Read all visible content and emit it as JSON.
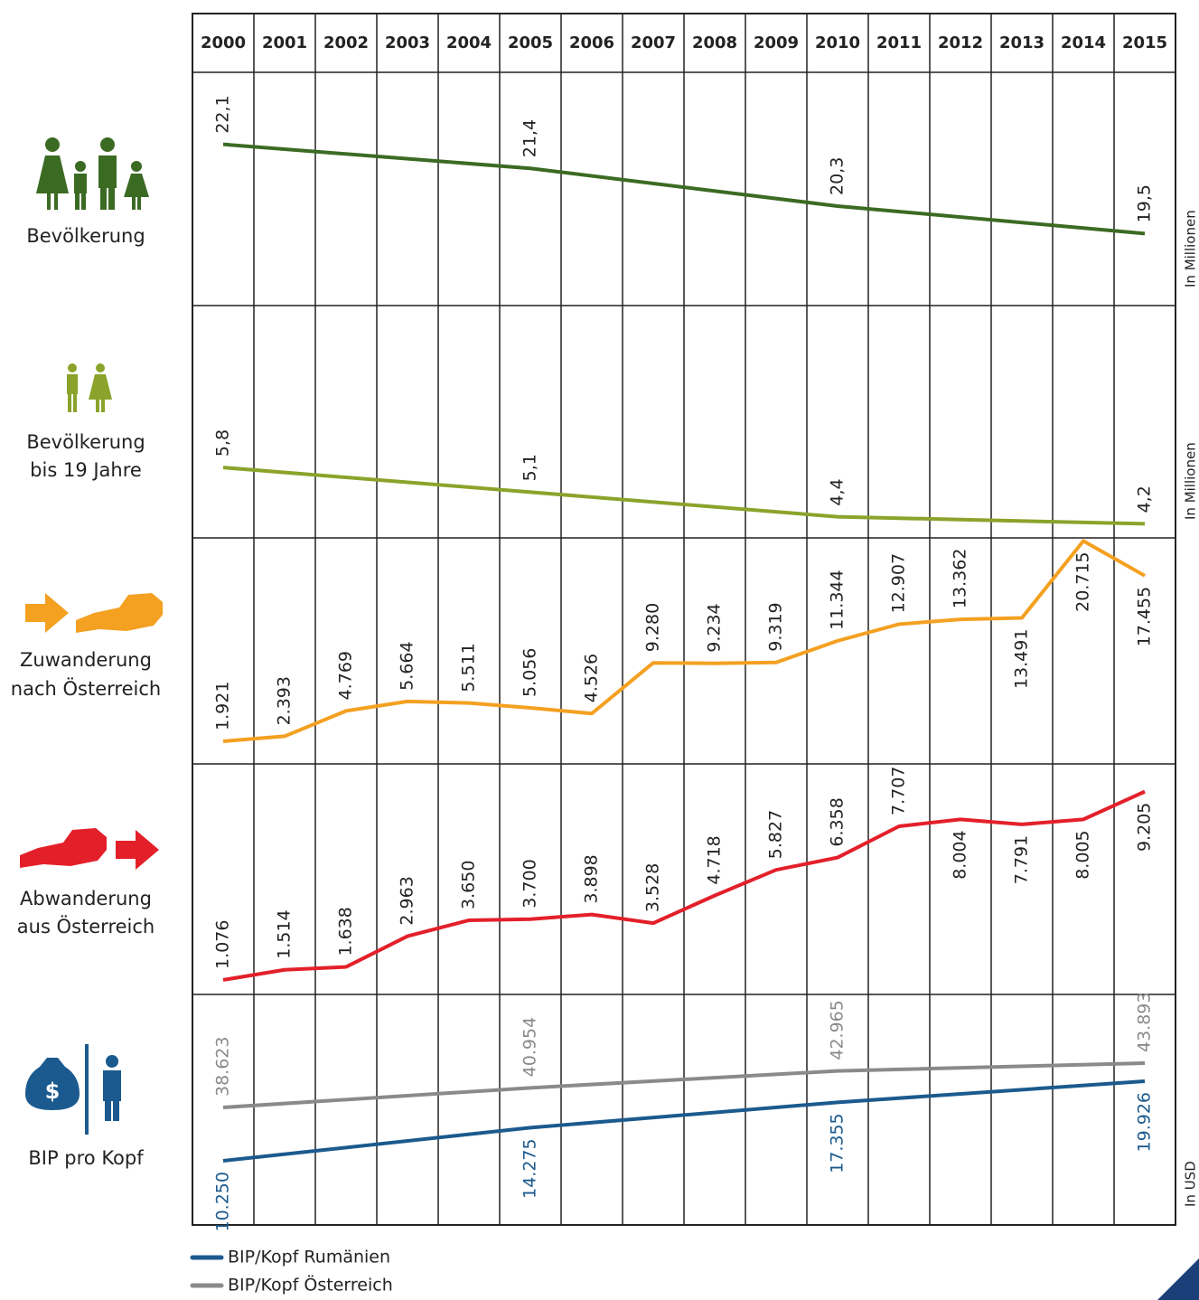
{
  "years": [
    2000,
    2001,
    2002,
    2003,
    2004,
    2005,
    2006,
    2007,
    2008,
    2009,
    2010,
    2011,
    2012,
    2013,
    2014,
    2015
  ],
  "chart_data": [
    {
      "type": "line",
      "label": [
        "Bevölkerung"
      ],
      "unit": "In Millionen",
      "color": "#3b6b23",
      "x": [
        2000,
        2005,
        2010,
        2015
      ],
      "values": [
        22.1,
        21.4,
        20.3,
        19.5
      ],
      "value_labels": [
        "22,1",
        "21,4",
        "20,3",
        "19,5"
      ],
      "ylim": [
        17.4,
        24.2
      ]
    },
    {
      "type": "line",
      "label": [
        "Bevölkerung",
        "bis 19 Jahre"
      ],
      "unit": "In Millionen",
      "color": "#8ba32b",
      "x": [
        2000,
        2005,
        2010,
        2015
      ],
      "values": [
        5.8,
        5.1,
        4.4,
        4.2
      ],
      "value_labels": [
        "5,8",
        "5,1",
        "4,4",
        "4,2"
      ],
      "ylim": [
        3.8,
        10.4
      ]
    },
    {
      "type": "line",
      "label": [
        "Zuwanderung",
        "nach Österreich"
      ],
      "color": "#f4a021",
      "x": [
        2000,
        2001,
        2002,
        2003,
        2004,
        2005,
        2006,
        2007,
        2008,
        2009,
        2010,
        2011,
        2012,
        2013,
        2014,
        2015
      ],
      "values": [
        1921,
        2393,
        4769,
        5664,
        5511,
        5056,
        4526,
        9280,
        9234,
        9319,
        11344,
        12907,
        13362,
        13491,
        20715,
        17455
      ],
      "value_labels": [
        "1.921",
        "2.393",
        "4.769",
        "5.664",
        "5.511",
        "5.056",
        "4.526",
        "9.280",
        "9.234",
        "9.319",
        "11.344",
        "12.907",
        "13.362",
        "13.491",
        "20.715",
        "17.455"
      ],
      "ylim": [
        -200,
        21000
      ]
    },
    {
      "type": "line",
      "label": [
        "Abwanderung",
        "aus Österreich"
      ],
      "color": "#e3202a",
      "x": [
        2000,
        2001,
        2002,
        2003,
        2004,
        2005,
        2006,
        2007,
        2008,
        2009,
        2010,
        2011,
        2012,
        2013,
        2014,
        2015
      ],
      "values": [
        1076,
        1514,
        1638,
        2963,
        3650,
        3700,
        3898,
        3528,
        4718,
        5827,
        6358,
        7707,
        8004,
        7791,
        8005,
        9205
      ],
      "value_labels": [
        "1.076",
        "1.514",
        "1.638",
        "2.963",
        "3.650",
        "3.700",
        "3.898",
        "3.528",
        "4.718",
        "5.827",
        "6.358",
        "7.707",
        "8.004",
        "7.791",
        "8.005",
        "9.205"
      ],
      "ylim": [
        450,
        10400
      ]
    },
    {
      "type": "line",
      "label": [
        "BIP pro Kopf"
      ],
      "unit": "In USD",
      "ylim": [
        2448,
        30476
      ],
      "y2lim": [
        24645,
        52065
      ],
      "series": [
        {
          "name": "BIP/Kopf Rumänien",
          "color": "#1b5a8e",
          "x": [
            2000,
            2005,
            2010,
            2015
          ],
          "values": [
            10250,
            14275,
            17355,
            19926
          ],
          "value_labels": [
            "10.250",
            "14.275",
            "17.355",
            "19.926"
          ]
        },
        {
          "name": "BIP/Kopf Österreich",
          "color": "#8a8a8a",
          "axis": "y2",
          "x": [
            2000,
            2005,
            2010,
            2015
          ],
          "values": [
            38623,
            40954,
            42965,
            43893
          ],
          "value_labels": [
            "38.623",
            "40.954",
            "42.965",
            "43.893"
          ]
        }
      ]
    }
  ]
}
